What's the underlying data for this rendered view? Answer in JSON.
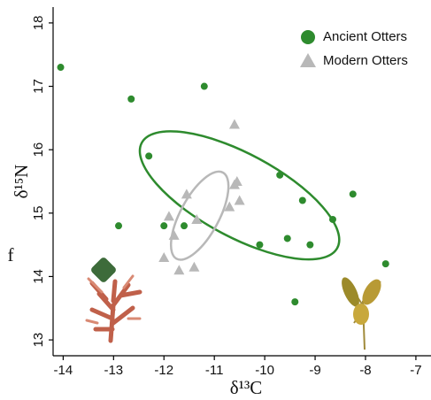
{
  "chart_data": {
    "type": "scatter",
    "x_label": "δ¹³C",
    "y_label": "δ¹⁵N",
    "annotation": "f",
    "xlim": [
      -14.2,
      -6.7
    ],
    "ylim": [
      12.75,
      18.25
    ],
    "xticks": [
      -14,
      -13,
      -12,
      -11,
      -10,
      -9,
      -8,
      -7
    ],
    "yticks": [
      13,
      14,
      15,
      16,
      17,
      18
    ],
    "legend": "upper right",
    "series": [
      {
        "name": "Ancient Otters",
        "color": "#2e8b2e",
        "marker": "circle",
        "x": [
          -14.05,
          -12.65,
          -11.2,
          -12.3,
          -12.9,
          -12.0,
          -11.6,
          -9.7,
          -9.25,
          -8.65,
          -8.25,
          -10.1,
          -9.55,
          -9.1,
          -7.6,
          -9.4
        ],
        "values": [
          17.3,
          16.8,
          17.0,
          15.9,
          14.8,
          14.8,
          14.8,
          15.6,
          15.2,
          14.9,
          15.3,
          14.5,
          14.6,
          14.5,
          14.2,
          13.6
        ],
        "ellipse": {
          "center": [
            -10.5,
            15.28
          ],
          "major": [
            -8.56,
            14.45
          ],
          "minor": [
            -10.12,
            15.86
          ]
        }
      },
      {
        "name": "Modern Otters",
        "color": "#b8b8b8",
        "marker": "triangle",
        "x": [
          -10.6,
          -11.55,
          -10.55,
          -10.6,
          -10.5,
          -10.7,
          -11.9,
          -11.35,
          -11.8,
          -12.0,
          -11.4,
          -11.7
        ],
        "values": [
          16.4,
          15.3,
          15.5,
          15.45,
          15.2,
          15.1,
          14.95,
          14.9,
          14.65,
          14.3,
          14.15,
          14.1
        ],
        "ellipse": {
          "center": [
            -11.29,
            14.96
          ],
          "major": [
            -10.83,
            15.64
          ],
          "minor": [
            -10.95,
            14.82
          ]
        }
      }
    ]
  }
}
